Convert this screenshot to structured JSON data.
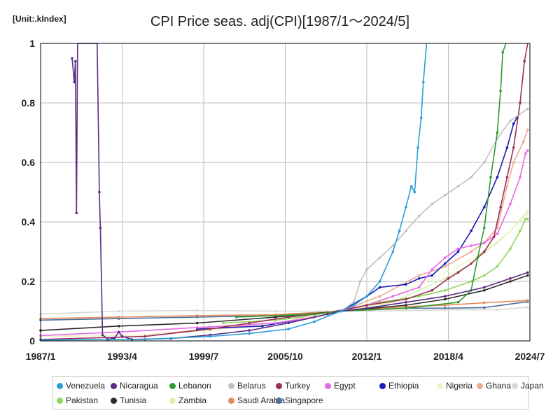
{
  "chart_data": {
    "type": "line",
    "unit_label": "[Unit:.kIndex]",
    "title": "CPI Price seas. adj(CPI)[1987/1～2024/5]",
    "x_ticks": [
      "1987/1",
      "1993/4",
      "1999/7",
      "2005/10",
      "2012/1",
      "2018/4",
      "2024/7"
    ],
    "y_ticks": [
      "0",
      "0.2",
      "0.4",
      "0.6",
      "0.8",
      "1"
    ],
    "xlim": [
      "1987/1",
      "2024/7"
    ],
    "ylim": [
      0,
      1
    ],
    "grid": true,
    "legend_position": "bottom",
    "series": [
      {
        "name": "Venezuela",
        "color": "#2a9fd6",
        "points": [
          [
            "1987/1",
            0.003
          ],
          [
            "1995/1",
            0.005
          ],
          [
            "2000/1",
            0.015
          ],
          [
            "2003/1",
            0.025
          ],
          [
            "2006/1",
            0.04
          ],
          [
            "2008/1",
            0.065
          ],
          [
            "2010/1",
            0.1
          ],
          [
            "2011/1",
            0.12
          ],
          [
            "2012/1",
            0.15
          ],
          [
            "2013/1",
            0.2
          ],
          [
            "2014/1",
            0.3
          ],
          [
            "2014/7",
            0.37
          ],
          [
            "2015/1",
            0.45
          ],
          [
            "2015/6",
            0.52
          ],
          [
            "2015/9",
            0.5
          ],
          [
            "2015/12",
            0.65
          ],
          [
            "2016/3",
            0.75
          ],
          [
            "2016/5",
            0.87
          ],
          [
            "2016/8",
            1.0
          ]
        ]
      },
      {
        "name": "Nicaragua",
        "color": "#5b2c83",
        "points": [
          [
            "1989/6",
            0.95
          ],
          [
            "1989/8",
            0.87
          ],
          [
            "1989/9",
            0.94
          ],
          [
            "1989/10",
            0.43
          ],
          [
            "1989/11",
            1.0
          ],
          [
            "1991/5",
            1.0
          ],
          [
            "1991/7",
            0.5
          ],
          [
            "1991/8",
            0.38
          ],
          [
            "1991/10",
            0.02
          ],
          [
            "1992/3",
            0.005
          ],
          [
            "1992/9",
            0.01
          ],
          [
            "1993/1",
            0.03
          ],
          [
            "1993/4",
            0.015
          ],
          [
            "1994/1",
            0.005
          ],
          [
            "1997/1",
            0.008
          ],
          [
            "2000/1",
            0.02
          ],
          [
            "2003/1",
            0.035
          ],
          [
            "2006/1",
            0.06
          ],
          [
            "2009/1",
            0.09
          ],
          [
            "2010/1",
            0.1
          ],
          [
            "2012/1",
            0.11
          ],
          [
            "2015/1",
            0.13
          ],
          [
            "2018/1",
            0.15
          ],
          [
            "2021/1",
            0.18
          ],
          [
            "2023/1",
            0.21
          ],
          [
            "2024/5",
            0.23
          ]
        ]
      },
      {
        "name": "Lebanon",
        "color": "#2e9a2e",
        "points": [
          [
            "2002/1",
            0.08
          ],
          [
            "2008/1",
            0.09
          ],
          [
            "2010/1",
            0.1
          ],
          [
            "2015/1",
            0.11
          ],
          [
            "2019/1",
            0.13
          ],
          [
            "2020/1",
            0.17
          ],
          [
            "2020/7",
            0.28
          ],
          [
            "2021/1",
            0.38
          ],
          [
            "2021/7",
            0.55
          ],
          [
            "2022/1",
            0.7
          ],
          [
            "2022/4",
            0.84
          ],
          [
            "2022/6",
            0.97
          ],
          [
            "2022/9",
            1.0
          ]
        ]
      },
      {
        "name": "Belarus",
        "color": "#c0c0c0",
        "points": [
          [
            "2009/1",
            0.09
          ],
          [
            "2010/1",
            0.1
          ],
          [
            "2011/1",
            0.13
          ],
          [
            "2011/7",
            0.2
          ],
          [
            "2012/1",
            0.24
          ],
          [
            "2013/1",
            0.28
          ],
          [
            "2014/1",
            0.32
          ],
          [
            "2015/1",
            0.37
          ],
          [
            "2016/1",
            0.42
          ],
          [
            "2017/1",
            0.46
          ],
          [
            "2018/1",
            0.49
          ],
          [
            "2019/1",
            0.52
          ],
          [
            "2020/1",
            0.55
          ],
          [
            "2021/1",
            0.6
          ],
          [
            "2022/1",
            0.68
          ],
          [
            "2023/1",
            0.74
          ],
          [
            "2024/5",
            0.78
          ]
        ]
      },
      {
        "name": "Turkey",
        "color": "#9b2f55",
        "points": [
          [
            "1987/1",
            0.005
          ],
          [
            "1995/1",
            0.015
          ],
          [
            "2000/1",
            0.04
          ],
          [
            "2003/1",
            0.06
          ],
          [
            "2006/1",
            0.08
          ],
          [
            "2009/1",
            0.095
          ],
          [
            "2012/1",
            0.12
          ],
          [
            "2015/1",
            0.14
          ],
          [
            "2017/1",
            0.17
          ],
          [
            "2018/4",
            0.21
          ],
          [
            "2019/1",
            0.23
          ],
          [
            "2020/1",
            0.26
          ],
          [
            "2021/1",
            0.3
          ],
          [
            "2021/10",
            0.35
          ],
          [
            "2022/4",
            0.45
          ],
          [
            "2022/10",
            0.55
          ],
          [
            "2023/4",
            0.65
          ],
          [
            "2023/10",
            0.8
          ],
          [
            "2024/2",
            0.94
          ],
          [
            "2024/5",
            1.0
          ]
        ]
      },
      {
        "name": "Egypt",
        "color": "#e866e8",
        "points": [
          [
            "1987/1",
            0.018
          ],
          [
            "1993/1",
            0.03
          ],
          [
            "1999/1",
            0.045
          ],
          [
            "2005/1",
            0.06
          ],
          [
            "2008/1",
            0.08
          ],
          [
            "2010/1",
            0.1
          ],
          [
            "2012/1",
            0.12
          ],
          [
            "2014/1",
            0.15
          ],
          [
            "2016/1",
            0.18
          ],
          [
            "2017/1",
            0.24
          ],
          [
            "2018/1",
            0.28
          ],
          [
            "2019/1",
            0.31
          ],
          [
            "2020/1",
            0.32
          ],
          [
            "2021/1",
            0.33
          ],
          [
            "2022/1",
            0.36
          ],
          [
            "2023/1",
            0.46
          ],
          [
            "2023/10",
            0.55
          ],
          [
            "2024/3",
            0.63
          ],
          [
            "2024/5",
            0.64
          ]
        ]
      },
      {
        "name": "Ethiopia",
        "color": "#1a1ab4",
        "points": [
          [
            "1999/1",
            0.04
          ],
          [
            "2004/1",
            0.05
          ],
          [
            "2008/1",
            0.08
          ],
          [
            "2010/1",
            0.1
          ],
          [
            "2012/1",
            0.15
          ],
          [
            "2013/1",
            0.18
          ],
          [
            "2015/1",
            0.19
          ],
          [
            "2016/1",
            0.21
          ],
          [
            "2017/1",
            0.22
          ],
          [
            "2018/1",
            0.26
          ],
          [
            "2019/1",
            0.3
          ],
          [
            "2020/1",
            0.37
          ],
          [
            "2021/1",
            0.45
          ],
          [
            "2022/1",
            0.55
          ],
          [
            "2022/10",
            0.65
          ],
          [
            "2023/4",
            0.73
          ],
          [
            "2023/7",
            0.75
          ]
        ]
      },
      {
        "name": "Nigeria",
        "color": "#eef5c8",
        "points": [
          [
            "1987/1",
            0.015
          ],
          [
            "1995/1",
            0.02
          ],
          [
            "2000/1",
            0.035
          ],
          [
            "2005/1",
            0.06
          ],
          [
            "2010/1",
            0.1
          ],
          [
            "2014/1",
            0.15
          ],
          [
            "2017/1",
            0.21
          ],
          [
            "2019/1",
            0.25
          ],
          [
            "2021/1",
            0.3
          ],
          [
            "2023/1",
            0.37
          ],
          [
            "2024/5",
            0.44
          ]
        ]
      },
      {
        "name": "Ghana",
        "color": "#f0a890",
        "points": [
          [
            "1987/1",
            0.015
          ],
          [
            "1995/1",
            0.02
          ],
          [
            "2000/1",
            0.04
          ],
          [
            "2005/1",
            0.06
          ],
          [
            "2010/1",
            0.1
          ],
          [
            "2013/1",
            0.15
          ],
          [
            "2016/1",
            0.22
          ],
          [
            "2018/1",
            0.25
          ],
          [
            "2020/1",
            0.3
          ],
          [
            "2021/1",
            0.33
          ],
          [
            "2022/1",
            0.38
          ],
          [
            "2022/10",
            0.52
          ],
          [
            "2023/4",
            0.6
          ],
          [
            "2024/1",
            0.67
          ],
          [
            "2024/5",
            0.71
          ]
        ]
      },
      {
        "name": "Japan",
        "color": "#d8d8d8",
        "points": [
          [
            "1987/1",
            0.09
          ],
          [
            "1993/1",
            0.1
          ],
          [
            "1999/1",
            0.102
          ],
          [
            "2005/1",
            0.1
          ],
          [
            "2012/1",
            0.1
          ],
          [
            "2018/1",
            0.104
          ],
          [
            "2022/1",
            0.105
          ],
          [
            "2024/5",
            0.113
          ]
        ]
      },
      {
        "name": "Pakistan",
        "color": "#8fd65c",
        "points": [
          [
            "2001/1",
            0.06
          ],
          [
            "2005/1",
            0.07
          ],
          [
            "2008/1",
            0.085
          ],
          [
            "2010/1",
            0.1
          ],
          [
            "2013/1",
            0.13
          ],
          [
            "2016/1",
            0.15
          ],
          [
            "2018/1",
            0.17
          ],
          [
            "2020/1",
            0.2
          ],
          [
            "2021/1",
            0.22
          ],
          [
            "2022/1",
            0.25
          ],
          [
            "2023/1",
            0.31
          ],
          [
            "2023/10",
            0.37
          ],
          [
            "2024/3",
            0.41
          ],
          [
            "2024/5",
            0.41
          ]
        ]
      },
      {
        "name": "Tunisia",
        "color": "#2a2a2a",
        "points": [
          [
            "1987/1",
            0.035
          ],
          [
            "1993/1",
            0.05
          ],
          [
            "1999/1",
            0.06
          ],
          [
            "2005/1",
            0.08
          ],
          [
            "2010/1",
            0.1
          ],
          [
            "2015/1",
            0.12
          ],
          [
            "2018/1",
            0.14
          ],
          [
            "2021/1",
            0.17
          ],
          [
            "2023/1",
            0.2
          ],
          [
            "2024/5",
            0.22
          ]
        ]
      },
      {
        "name": "Zambia",
        "color": "#dcf0b4",
        "points": [
          [
            "2005/1",
            0.07
          ],
          [
            "2010/1",
            0.1
          ],
          [
            "2014/1",
            0.13
          ],
          [
            "2016/1",
            0.17
          ],
          [
            "2018/1",
            0.21
          ],
          [
            "2020/1",
            0.26
          ],
          [
            "2022/1",
            0.33
          ],
          [
            "2023/1",
            0.37
          ],
          [
            "2024/5",
            0.43
          ]
        ]
      },
      {
        "name": "Saudi Arabia",
        "color": "#e48a5a",
        "points": [
          [
            "1987/1",
            0.075
          ],
          [
            "1993/1",
            0.08
          ],
          [
            "1999/1",
            0.085
          ],
          [
            "2005/1",
            0.088
          ],
          [
            "2010/1",
            0.1
          ],
          [
            "2015/1",
            0.115
          ],
          [
            "2018/1",
            0.12
          ],
          [
            "2021/1",
            0.128
          ],
          [
            "2024/5",
            0.136
          ]
        ]
      },
      {
        "name": "Singapore",
        "color": "#4a6f9a",
        "points": [
          [
            "1987/1",
            0.07
          ],
          [
            "1993/1",
            0.075
          ],
          [
            "1999/1",
            0.08
          ],
          [
            "2005/1",
            0.085
          ],
          [
            "2010/1",
            0.1
          ],
          [
            "2015/1",
            0.11
          ],
          [
            "2018/1",
            0.11
          ],
          [
            "2021/1",
            0.112
          ],
          [
            "2024/5",
            0.132
          ]
        ]
      }
    ]
  }
}
